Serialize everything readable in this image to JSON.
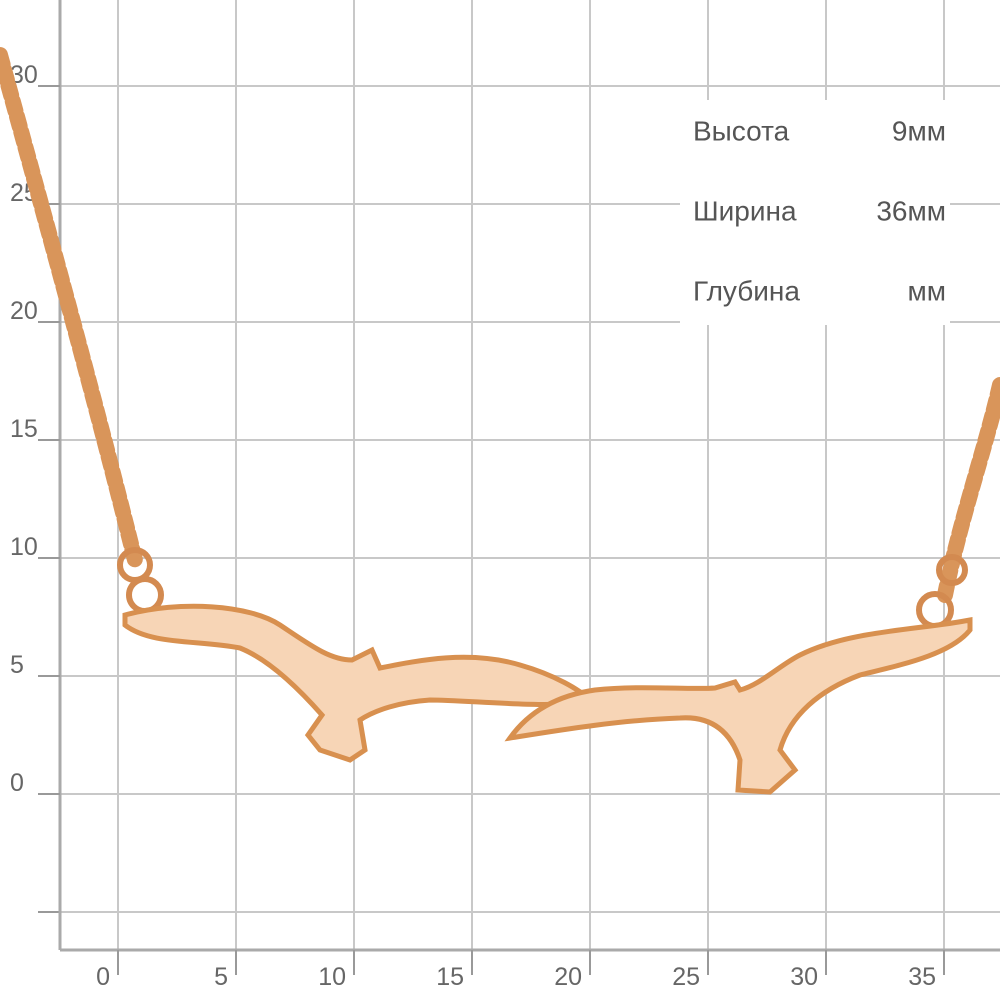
{
  "grid": {
    "x_labels": [
      0,
      5,
      10,
      15,
      20,
      25,
      30,
      35
    ],
    "y_labels": [
      30,
      25,
      20,
      15,
      10,
      5,
      0
    ]
  },
  "specs": [
    {
      "label": "Высота",
      "value": "9мм"
    },
    {
      "label": "Ширина",
      "value": "36мм"
    },
    {
      "label": "Глубина",
      "value": "мм"
    }
  ]
}
